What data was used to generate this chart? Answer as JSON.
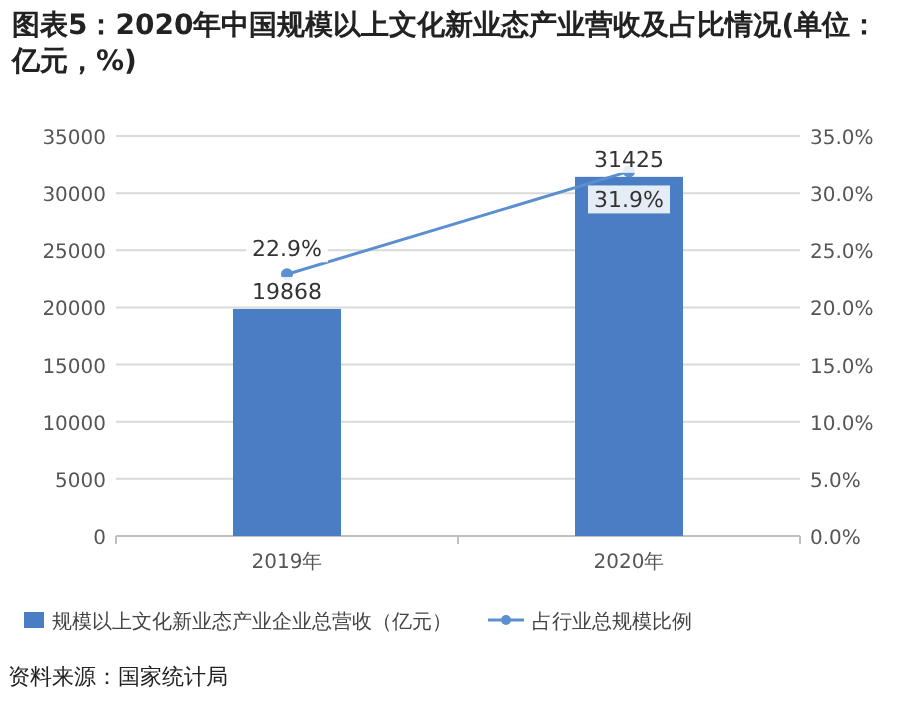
{
  "chart_data": {
    "type": "bar",
    "title": "图表5：2020年中国规模以上文化新业态产业营收及占比情况(单位：亿元，%)",
    "categories": [
      "2019年",
      "2020年"
    ],
    "series": [
      {
        "name": "规模以上文化新业态产业企业总营收（亿元）",
        "color": "#4a7ec4",
        "values": [
          19868,
          31425
        ],
        "value_labels": [
          "19868",
          "31425"
        ]
      },
      {
        "name": "占行业总规模比例",
        "type": "line",
        "axis": "y2",
        "color": "#5b8fd0",
        "values": [
          22.9,
          31.9
        ],
        "value_labels": [
          "22.9%",
          "31.9%"
        ],
        "marker": "circle"
      }
    ],
    "ylim": [
      0,
      35000
    ],
    "yticks": [
      0,
      5000,
      10000,
      15000,
      20000,
      25000,
      30000,
      35000
    ],
    "y2lim": [
      0,
      35
    ],
    "y2ticks": [
      {
        "value": 0,
        "label": "0.0%"
      },
      {
        "value": 5,
        "label": "5.0%"
      },
      {
        "value": 10,
        "label": "10.0%"
      },
      {
        "value": 15,
        "label": "15.0%"
      },
      {
        "value": 20,
        "label": "20.0%"
      },
      {
        "value": 25,
        "label": "25.0%"
      },
      {
        "value": 30,
        "label": "30.0%"
      },
      {
        "value": 35,
        "label": "35.0%"
      }
    ],
    "grid": "y",
    "legend": "bottom",
    "annotations": [
      "资料来源：国家统计局"
    ]
  }
}
